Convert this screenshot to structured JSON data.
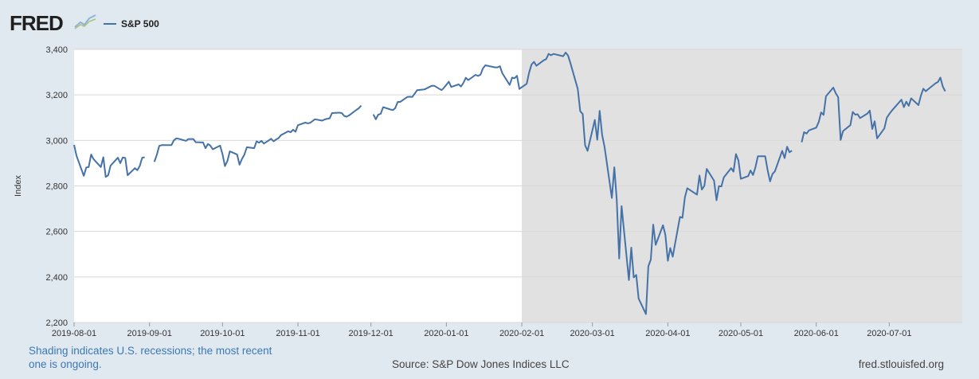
{
  "header": {
    "logo_text": "FRED",
    "logo_icon": "chart-sparkline-icon"
  },
  "footer": {
    "recession_note": "Shading indicates U.S. recessions; the most recent one is ongoing.",
    "source": "Source: S&P Dow Jones Indices LLC",
    "site": "fred.stlouisfed.org"
  },
  "colors": {
    "series": "#4572a7",
    "recession_shade": "#e1e1e1",
    "plot_bg": "#ffffff",
    "page_bg": "#e1e9f0",
    "note_text": "#3b78b5"
  },
  "chart_data": {
    "type": "line",
    "xlabel": "",
    "ylabel": "Index",
    "xlim": [
      "2019-08-01",
      "2020-07-31"
    ],
    "ylim": [
      2200,
      3400
    ],
    "y_ticks": [
      2200,
      2400,
      2600,
      2800,
      3000,
      3200,
      3400
    ],
    "y_tick_labels": [
      "2,200",
      "2,400",
      "2,600",
      "2,800",
      "3,000",
      "3,200",
      "3,400"
    ],
    "x_ticks": [
      "2019-08-01",
      "2019-09-01",
      "2019-10-01",
      "2019-11-01",
      "2019-12-01",
      "2020-01-01",
      "2020-02-01",
      "2020-03-01",
      "2020-04-01",
      "2020-05-01",
      "2020-06-01",
      "2020-07-01"
    ],
    "grid": "horizontal",
    "legend_placement": "top-left",
    "recession_shading": [
      {
        "start": "2020-02-01",
        "end": "2020-07-31"
      }
    ],
    "series": [
      {
        "name": "S&P 500",
        "points": [
          [
            "2019-08-01",
            2980
          ],
          [
            "2019-08-02",
            2932
          ],
          [
            "2019-08-05",
            2844
          ],
          [
            "2019-08-06",
            2881
          ],
          [
            "2019-08-07",
            2883
          ],
          [
            "2019-08-08",
            2938
          ],
          [
            "2019-08-09",
            2918
          ],
          [
            "2019-08-12",
            2883
          ],
          [
            "2019-08-13",
            2926
          ],
          [
            "2019-08-14",
            2840
          ],
          [
            "2019-08-15",
            2847
          ],
          [
            "2019-08-16",
            2889
          ],
          [
            "2019-08-19",
            2924
          ],
          [
            "2019-08-20",
            2900
          ],
          [
            "2019-08-21",
            2925
          ],
          [
            "2019-08-22",
            2923
          ],
          [
            "2019-08-23",
            2847
          ],
          [
            "2019-08-26",
            2878
          ],
          [
            "2019-08-27",
            2869
          ],
          [
            "2019-08-28",
            2888
          ],
          [
            "2019-08-29",
            2924
          ],
          [
            "2019-08-30",
            2926
          ],
          [
            "2019-09-03",
            2906
          ],
          [
            "2019-09-04",
            2937
          ],
          [
            "2019-09-05",
            2976
          ],
          [
            "2019-09-06",
            2979
          ],
          [
            "2019-09-09",
            2979
          ],
          [
            "2019-09-10",
            2979
          ],
          [
            "2019-09-11",
            3000
          ],
          [
            "2019-09-12",
            3009
          ],
          [
            "2019-09-13",
            3007
          ],
          [
            "2019-09-16",
            2998
          ],
          [
            "2019-09-17",
            3006
          ],
          [
            "2019-09-18",
            3006
          ],
          [
            "2019-09-19",
            3006
          ],
          [
            "2019-09-20",
            2992
          ],
          [
            "2019-09-23",
            2991
          ],
          [
            "2019-09-24",
            2966
          ],
          [
            "2019-09-25",
            2984
          ],
          [
            "2019-09-26",
            2977
          ],
          [
            "2019-09-27",
            2961
          ],
          [
            "2019-09-30",
            2977
          ],
          [
            "2019-10-01",
            2940
          ],
          [
            "2019-10-02",
            2887
          ],
          [
            "2019-10-03",
            2910
          ],
          [
            "2019-10-04",
            2952
          ],
          [
            "2019-10-07",
            2938
          ],
          [
            "2019-10-08",
            2893
          ],
          [
            "2019-10-09",
            2919
          ],
          [
            "2019-10-10",
            2938
          ],
          [
            "2019-10-11",
            2970
          ],
          [
            "2019-10-14",
            2966
          ],
          [
            "2019-10-15",
            2996
          ],
          [
            "2019-10-16",
            2990
          ],
          [
            "2019-10-17",
            2998
          ],
          [
            "2019-10-18",
            2986
          ],
          [
            "2019-10-21",
            3007
          ],
          [
            "2019-10-22",
            2996
          ],
          [
            "2019-10-23",
            3004
          ],
          [
            "2019-10-24",
            3010
          ],
          [
            "2019-10-25",
            3023
          ],
          [
            "2019-10-28",
            3040
          ],
          [
            "2019-10-29",
            3036
          ],
          [
            "2019-10-30",
            3047
          ],
          [
            "2019-10-31",
            3038
          ],
          [
            "2019-11-01",
            3067
          ],
          [
            "2019-11-04",
            3078
          ],
          [
            "2019-11-05",
            3075
          ],
          [
            "2019-11-06",
            3077
          ],
          [
            "2019-11-07",
            3085
          ],
          [
            "2019-11-08",
            3093
          ],
          [
            "2019-11-11",
            3087
          ],
          [
            "2019-11-12",
            3092
          ],
          [
            "2019-11-13",
            3095
          ],
          [
            "2019-11-14",
            3097
          ],
          [
            "2019-11-15",
            3120
          ],
          [
            "2019-11-18",
            3122
          ],
          [
            "2019-11-19",
            3120
          ],
          [
            "2019-11-20",
            3108
          ],
          [
            "2019-11-21",
            3104
          ],
          [
            "2019-11-22",
            3110
          ],
          [
            "2019-11-25",
            3134
          ],
          [
            "2019-11-26",
            3141
          ],
          [
            "2019-11-27",
            3153
          ],
          [
            "2019-12-02",
            3114
          ],
          [
            "2019-12-03",
            3093
          ],
          [
            "2019-12-04",
            3113
          ],
          [
            "2019-12-05",
            3117
          ],
          [
            "2019-12-06",
            3146
          ],
          [
            "2019-12-09",
            3136
          ],
          [
            "2019-12-10",
            3133
          ],
          [
            "2019-12-11",
            3142
          ],
          [
            "2019-12-12",
            3169
          ],
          [
            "2019-12-13",
            3169
          ],
          [
            "2019-12-16",
            3191
          ],
          [
            "2019-12-17",
            3192
          ],
          [
            "2019-12-18",
            3191
          ],
          [
            "2019-12-19",
            3206
          ],
          [
            "2019-12-20",
            3221
          ],
          [
            "2019-12-23",
            3224
          ],
          [
            "2019-12-26",
            3240
          ],
          [
            "2019-12-27",
            3240
          ],
          [
            "2019-12-30",
            3221
          ],
          [
            "2019-12-31",
            3231
          ],
          [
            "2020-01-02",
            3258
          ],
          [
            "2020-01-03",
            3235
          ],
          [
            "2020-01-06",
            3246
          ],
          [
            "2020-01-07",
            3237
          ],
          [
            "2020-01-08",
            3253
          ],
          [
            "2020-01-09",
            3275
          ],
          [
            "2020-01-10",
            3265
          ],
          [
            "2020-01-13",
            3288
          ],
          [
            "2020-01-14",
            3283
          ],
          [
            "2020-01-15",
            3289
          ],
          [
            "2020-01-16",
            3316
          ],
          [
            "2020-01-17",
            3330
          ],
          [
            "2020-01-21",
            3321
          ],
          [
            "2020-01-22",
            3321
          ],
          [
            "2020-01-23",
            3326
          ],
          [
            "2020-01-24",
            3295
          ],
          [
            "2020-01-27",
            3244
          ],
          [
            "2020-01-28",
            3276
          ],
          [
            "2020-01-29",
            3273
          ],
          [
            "2020-01-30",
            3284
          ],
          [
            "2020-01-31",
            3226
          ],
          [
            "2020-02-03",
            3249
          ],
          [
            "2020-02-04",
            3298
          ],
          [
            "2020-02-05",
            3334
          ],
          [
            "2020-02-06",
            3345
          ],
          [
            "2020-02-07",
            3328
          ],
          [
            "2020-02-10",
            3352
          ],
          [
            "2020-02-11",
            3357
          ],
          [
            "2020-02-12",
            3380
          ],
          [
            "2020-02-13",
            3374
          ],
          [
            "2020-02-14",
            3380
          ],
          [
            "2020-02-18",
            3370
          ],
          [
            "2020-02-19",
            3386
          ],
          [
            "2020-02-20",
            3373
          ],
          [
            "2020-02-21",
            3338
          ],
          [
            "2020-02-24",
            3226
          ],
          [
            "2020-02-25",
            3128
          ],
          [
            "2020-02-26",
            3116
          ],
          [
            "2020-02-27",
            2979
          ],
          [
            "2020-02-28",
            2954
          ],
          [
            "2020-03-02",
            3090
          ],
          [
            "2020-03-03",
            3003
          ],
          [
            "2020-03-04",
            3130
          ],
          [
            "2020-03-05",
            3024
          ],
          [
            "2020-03-06",
            2972
          ],
          [
            "2020-03-09",
            2747
          ],
          [
            "2020-03-10",
            2882
          ],
          [
            "2020-03-11",
            2741
          ],
          [
            "2020-03-12",
            2481
          ],
          [
            "2020-03-13",
            2711
          ],
          [
            "2020-03-16",
            2386
          ],
          [
            "2020-03-17",
            2529
          ],
          [
            "2020-03-18",
            2398
          ],
          [
            "2020-03-19",
            2409
          ],
          [
            "2020-03-20",
            2305
          ],
          [
            "2020-03-23",
            2237
          ],
          [
            "2020-03-24",
            2447
          ],
          [
            "2020-03-25",
            2476
          ],
          [
            "2020-03-26",
            2630
          ],
          [
            "2020-03-27",
            2541
          ],
          [
            "2020-03-30",
            2627
          ],
          [
            "2020-03-31",
            2585
          ],
          [
            "2020-04-01",
            2471
          ],
          [
            "2020-04-02",
            2527
          ],
          [
            "2020-04-03",
            2489
          ],
          [
            "2020-04-06",
            2664
          ],
          [
            "2020-04-07",
            2660
          ],
          [
            "2020-04-08",
            2750
          ],
          [
            "2020-04-09",
            2790
          ],
          [
            "2020-04-13",
            2762
          ],
          [
            "2020-04-14",
            2846
          ],
          [
            "2020-04-15",
            2784
          ],
          [
            "2020-04-16",
            2800
          ],
          [
            "2020-04-17",
            2875
          ],
          [
            "2020-04-20",
            2823
          ],
          [
            "2020-04-21",
            2737
          ],
          [
            "2020-04-22",
            2799
          ],
          [
            "2020-04-23",
            2798
          ],
          [
            "2020-04-24",
            2837
          ],
          [
            "2020-04-27",
            2878
          ],
          [
            "2020-04-28",
            2863
          ],
          [
            "2020-04-29",
            2940
          ],
          [
            "2020-04-30",
            2912
          ],
          [
            "2020-05-01",
            2831
          ],
          [
            "2020-05-04",
            2843
          ],
          [
            "2020-05-05",
            2868
          ],
          [
            "2020-05-06",
            2848
          ],
          [
            "2020-05-07",
            2881
          ],
          [
            "2020-05-08",
            2930
          ],
          [
            "2020-05-11",
            2930
          ],
          [
            "2020-05-12",
            2870
          ],
          [
            "2020-05-13",
            2820
          ],
          [
            "2020-05-14",
            2852
          ],
          [
            "2020-05-15",
            2864
          ],
          [
            "2020-05-18",
            2954
          ],
          [
            "2020-05-19",
            2922
          ],
          [
            "2020-05-20",
            2972
          ],
          [
            "2020-05-21",
            2948
          ],
          [
            "2020-05-22",
            2955
          ],
          [
            "2020-05-26",
            2992
          ],
          [
            "2020-05-27",
            3036
          ],
          [
            "2020-05-28",
            3030
          ],
          [
            "2020-05-29",
            3044
          ],
          [
            "2020-06-01",
            3056
          ],
          [
            "2020-06-02",
            3081
          ],
          [
            "2020-06-03",
            3123
          ],
          [
            "2020-06-04",
            3112
          ],
          [
            "2020-06-05",
            3194
          ],
          [
            "2020-06-08",
            3232
          ],
          [
            "2020-06-09",
            3207
          ],
          [
            "2020-06-10",
            3190
          ],
          [
            "2020-06-11",
            3002
          ],
          [
            "2020-06-12",
            3041
          ],
          [
            "2020-06-15",
            3067
          ],
          [
            "2020-06-16",
            3125
          ],
          [
            "2020-06-17",
            3113
          ],
          [
            "2020-06-18",
            3115
          ],
          [
            "2020-06-19",
            3098
          ],
          [
            "2020-06-22",
            3118
          ],
          [
            "2020-06-23",
            3131
          ],
          [
            "2020-06-24",
            3050
          ],
          [
            "2020-06-25",
            3084
          ],
          [
            "2020-06-26",
            3009
          ],
          [
            "2020-06-29",
            3053
          ],
          [
            "2020-06-30",
            3100
          ],
          [
            "2020-07-01",
            3116
          ],
          [
            "2020-07-02",
            3130
          ],
          [
            "2020-07-06",
            3179
          ],
          [
            "2020-07-07",
            3146
          ],
          [
            "2020-07-08",
            3170
          ],
          [
            "2020-07-09",
            3152
          ],
          [
            "2020-07-10",
            3185
          ],
          [
            "2020-07-13",
            3155
          ],
          [
            "2020-07-14",
            3197
          ],
          [
            "2020-07-15",
            3227
          ],
          [
            "2020-07-16",
            3216
          ],
          [
            "2020-07-17",
            3225
          ],
          [
            "2020-07-20",
            3251
          ],
          [
            "2020-07-21",
            3257
          ],
          [
            "2020-07-22",
            3276
          ],
          [
            "2020-07-23",
            3236
          ],
          [
            "2020-07-24",
            3216
          ]
        ],
        "gaps_after": [
          "2019-08-30",
          "2019-11-27",
          "2020-05-22"
        ]
      }
    ]
  }
}
